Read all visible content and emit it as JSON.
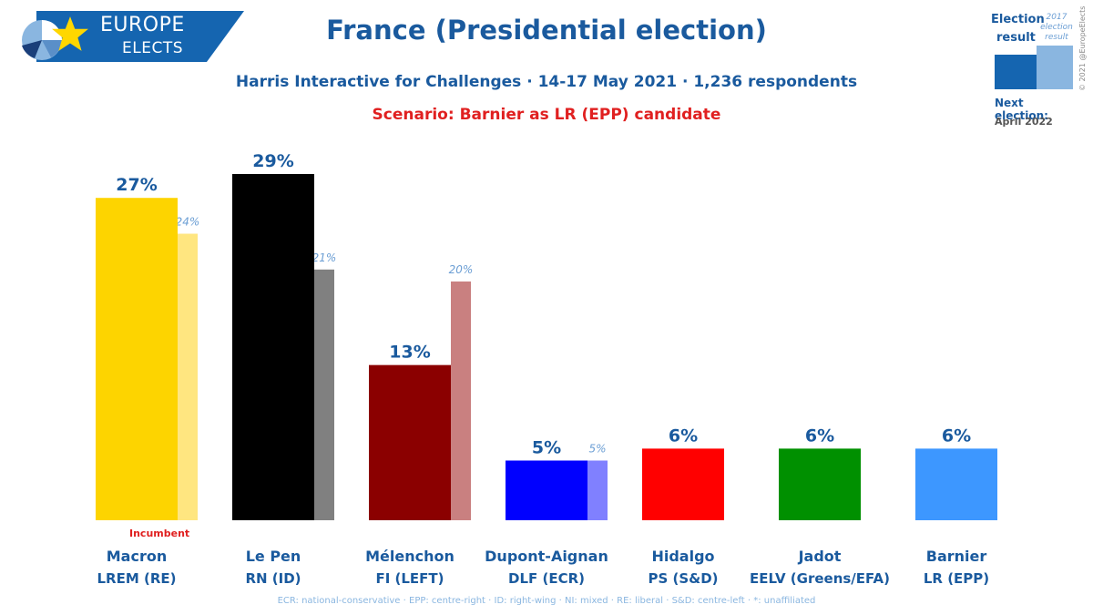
{
  "brand": {
    "line1": "EUROPE",
    "line2": "ELECTS"
  },
  "header": {
    "title": "France (Presidential election)",
    "subtitle": "Harris Interactive for Challenges · 14-17 May 2021 · 1,236 respondents",
    "scenario": "Scenario: Barnier as LR (EPP) candidate"
  },
  "legend": {
    "line1": "Election",
    "line2": "result",
    "prev": "2017 election result",
    "next_label": "Next election:",
    "next_date": "April 2022"
  },
  "copyright": "© 2021 @EuropeElects",
  "incumbent_label": "Incumbent",
  "footnote": "ECR: national-conservative · EPP: centre-right · ID: right-wing · NI: mixed · RE: liberal · S&D: centre-left · *: unaffiliated",
  "chart_data": {
    "type": "bar",
    "ylim": [
      0,
      30
    ],
    "candidates": [
      {
        "name": "Macron",
        "party": "LREM (RE)",
        "value": 27,
        "label": "27%",
        "prev": 24,
        "prev_label": "24%",
        "color": "#fdd400",
        "prev_color": "#ffe680"
      },
      {
        "name": "Le Pen",
        "party": "RN (ID)",
        "value": 29,
        "label": "29%",
        "prev": 21,
        "prev_label": "21%",
        "color": "#000000",
        "prev_color": "#808080"
      },
      {
        "name": "Mélenchon",
        "party": "FI (LEFT)",
        "value": 13,
        "label": "13%",
        "prev": 20,
        "prev_label": "20%",
        "color": "#8b0000",
        "prev_color": "#c98080"
      },
      {
        "name": "Dupont-Aignan",
        "party": "DLF (ECR)",
        "value": 5,
        "label": "5%",
        "prev": 5,
        "prev_label": "5%",
        "color": "#0000ff",
        "prev_color": "#8080ff"
      },
      {
        "name": "Hidalgo",
        "party": "PS (S&D)",
        "value": 6,
        "label": "6%",
        "prev": null,
        "prev_label": null,
        "color": "#ff0000",
        "prev_color": null
      },
      {
        "name": "Jadot",
        "party": "EELV (Greens/EFA)",
        "value": 6,
        "label": "6%",
        "prev": null,
        "prev_label": null,
        "color": "#009000",
        "prev_color": null
      },
      {
        "name": "Barnier",
        "party": "LR (EPP)",
        "value": 6,
        "label": "6%",
        "prev": null,
        "prev_label": null,
        "color": "#3d97ff",
        "prev_color": null
      }
    ]
  }
}
